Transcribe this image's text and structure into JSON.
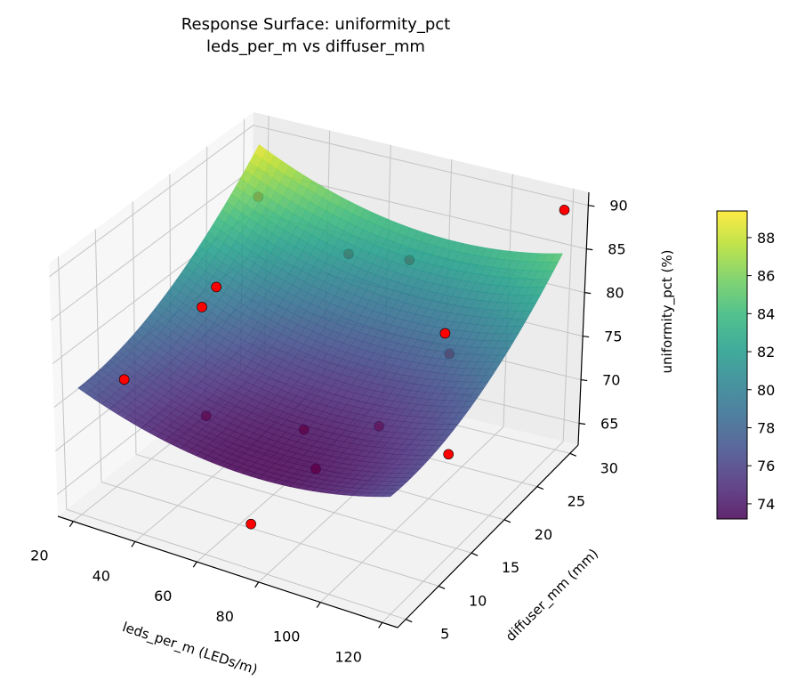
{
  "chart_data": {
    "type": "surface3d",
    "title": "Response Surface: uniformity_pct",
    "subtitle": "leds_per_m vs diffuser_mm",
    "xlabel": "leds_per_m (LEDs/m)",
    "ylabel": "diffuser_mm (mm)",
    "zlabel": "uniformity_pct (%)",
    "xlim": [
      15,
      125
    ],
    "ylim": [
      3.75,
      31.25
    ],
    "zlim": [
      62.5,
      91.5
    ],
    "xticks": [
      20,
      40,
      60,
      80,
      100,
      120
    ],
    "yticks": [
      5,
      10,
      15,
      20,
      25,
      30
    ],
    "zticks": [
      65,
      70,
      75,
      80,
      85,
      90
    ],
    "surface_model": {
      "description_terms": "quadratic fit",
      "x_range": [
        20,
        120
      ],
      "y_range": [
        5,
        30
      ],
      "coefficients": {
        "intercept": 75.5,
        "u": -1.25,
        "v": 5.25,
        "u2": 3.3,
        "v2": 2.95,
        "uv": -0.75
      }
    },
    "colormap": "viridis",
    "colorbar": {
      "clim": [
        73.2,
        89.4
      ],
      "ticks": [
        74,
        76,
        78,
        80,
        82,
        84,
        86,
        88
      ]
    },
    "points": [
      {
        "x": 35,
        "y": 5,
        "z": 79.7
      },
      {
        "x": 75,
        "y": 5,
        "z": 67.7
      },
      {
        "x": 85,
        "y": 10,
        "z": 71.6
      },
      {
        "x": 117,
        "y": 15,
        "z": 73.0
      },
      {
        "x": 100,
        "y": 22,
        "z": 80.0
      },
      {
        "x": 120,
        "y": 30,
        "z": 90.0
      },
      {
        "x": 20,
        "y": 30,
        "z": 83.0
      },
      {
        "x": 30,
        "y": 20,
        "z": 80.0
      },
      {
        "x": 30,
        "y": 18,
        "z": 79.0
      },
      {
        "x": 50,
        "y": 30,
        "z": 79.0
      },
      {
        "x": 70,
        "y": 30,
        "z": 80.0
      },
      {
        "x": 95,
        "y": 25,
        "z": 75.0
      },
      {
        "x": 45,
        "y": 12,
        "z": 72.0
      },
      {
        "x": 70,
        "y": 15,
        "z": 71.0
      },
      {
        "x": 90,
        "y": 17,
        "z": 72.0
      }
    ],
    "point_color": "#ff0000",
    "grid": true
  }
}
